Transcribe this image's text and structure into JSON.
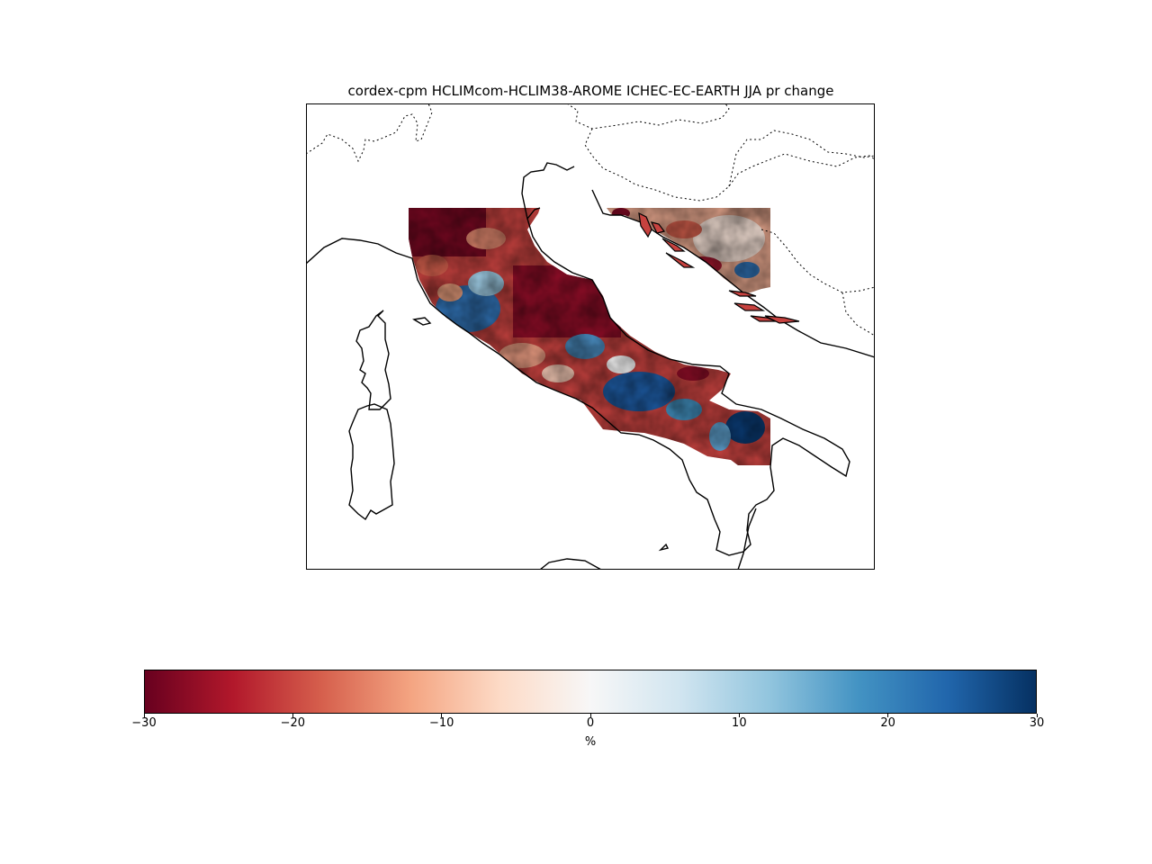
{
  "title": "cordex-cpm HCLIMcom-HCLIM38-AROME ICHEC-EC-EARTH JJA pr change",
  "colorbar": {
    "label": "%",
    "min": -30,
    "max": 30,
    "ticks": [
      "−30",
      "−20",
      "−10",
      "0",
      "10",
      "20",
      "30"
    ],
    "colormap": "RdBu",
    "stops": [
      "#67001f",
      "#b2182b",
      "#d6604d",
      "#f4a582",
      "#fddbc7",
      "#f7f7f7",
      "#d1e5f0",
      "#92c5de",
      "#4393c3",
      "#2166ac",
      "#053061"
    ]
  },
  "colors": {
    "coastline": "#000000",
    "border": "#000000",
    "frame": "#000000"
  },
  "map": {
    "region": "Central-southern Italy and Croatian coast",
    "variable": "pr",
    "season": "JJA"
  }
}
